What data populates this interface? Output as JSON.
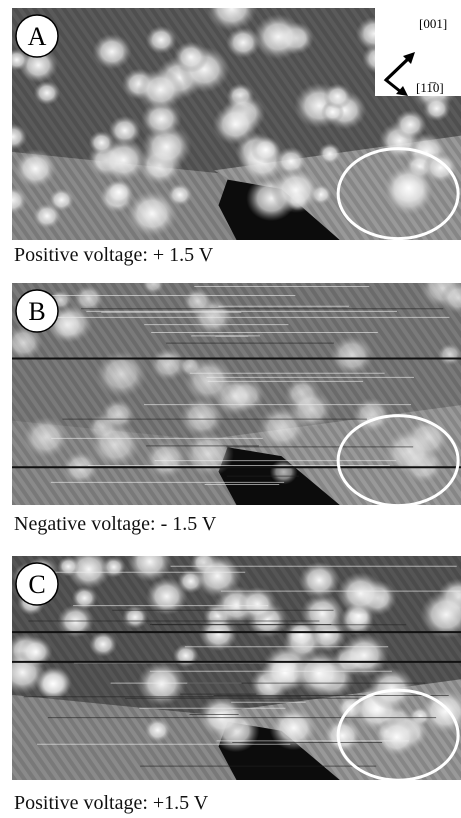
{
  "panels": [
    {
      "label": "A",
      "caption": "Positive voltage: + 1.5 V"
    },
    {
      "label": "B",
      "caption": "Negative voltage: - 1.5 V"
    },
    {
      "label": "C",
      "caption": "Positive voltage: +1.5 V"
    }
  ],
  "directions": [
    "[001]",
    "[11̅0]"
  ]
}
